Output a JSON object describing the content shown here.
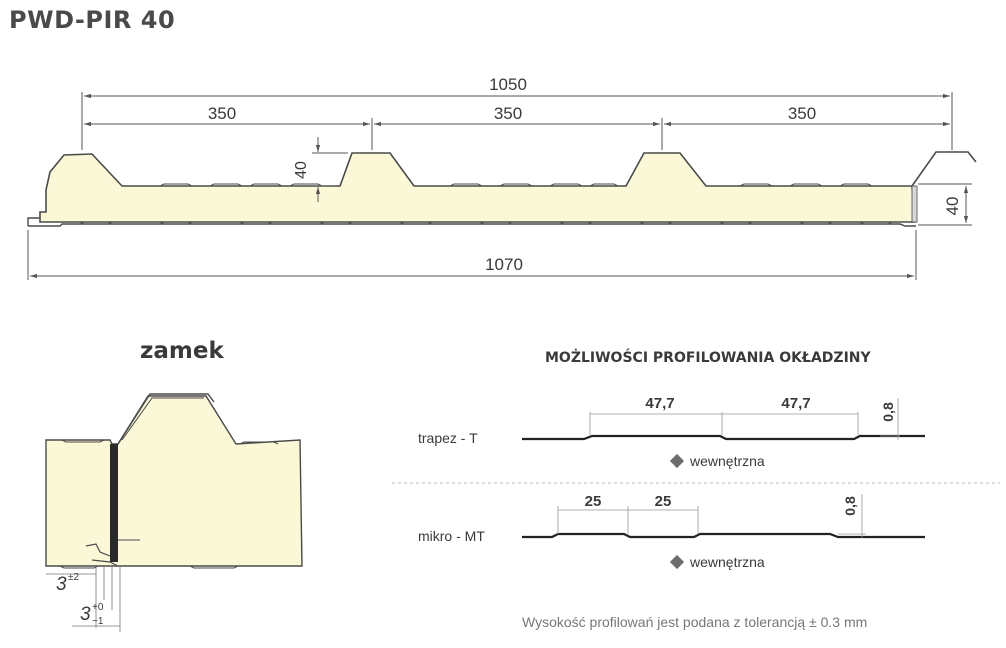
{
  "title": "PWD-PIR 40",
  "main_profile": {
    "top_total": "1050",
    "top_spans": [
      "350",
      "350",
      "350"
    ],
    "rib_height": "40",
    "side_height": "40",
    "bottom_total": "1070"
  },
  "lock": {
    "title": "zamek",
    "tolerance_1_base": "3",
    "tolerance_1_sup": "±2",
    "tolerance_2_base": "3",
    "tolerance_2_sup": "+0",
    "tolerance_2_sub": "−1"
  },
  "profiling": {
    "heading": "MOŻLIWOŚCI PROFILOWANIA OKŁADZINY",
    "trapez": {
      "name": "trapez - T",
      "spacing_1": "47,7",
      "spacing_2": "47,7",
      "depth": "0,8",
      "side": "wewnętrzna"
    },
    "mikro": {
      "name": "mikro - MT",
      "spacing_1": "25",
      "spacing_2": "25",
      "depth": "0,8",
      "side": "wewnętrzna"
    },
    "note": "Wysokość profilowań jest podana z tolerancją ± 0.3 mm"
  },
  "colors": {
    "foam": "#fbf8d8",
    "line": "#4a4a4a",
    "dim": "#555555"
  }
}
